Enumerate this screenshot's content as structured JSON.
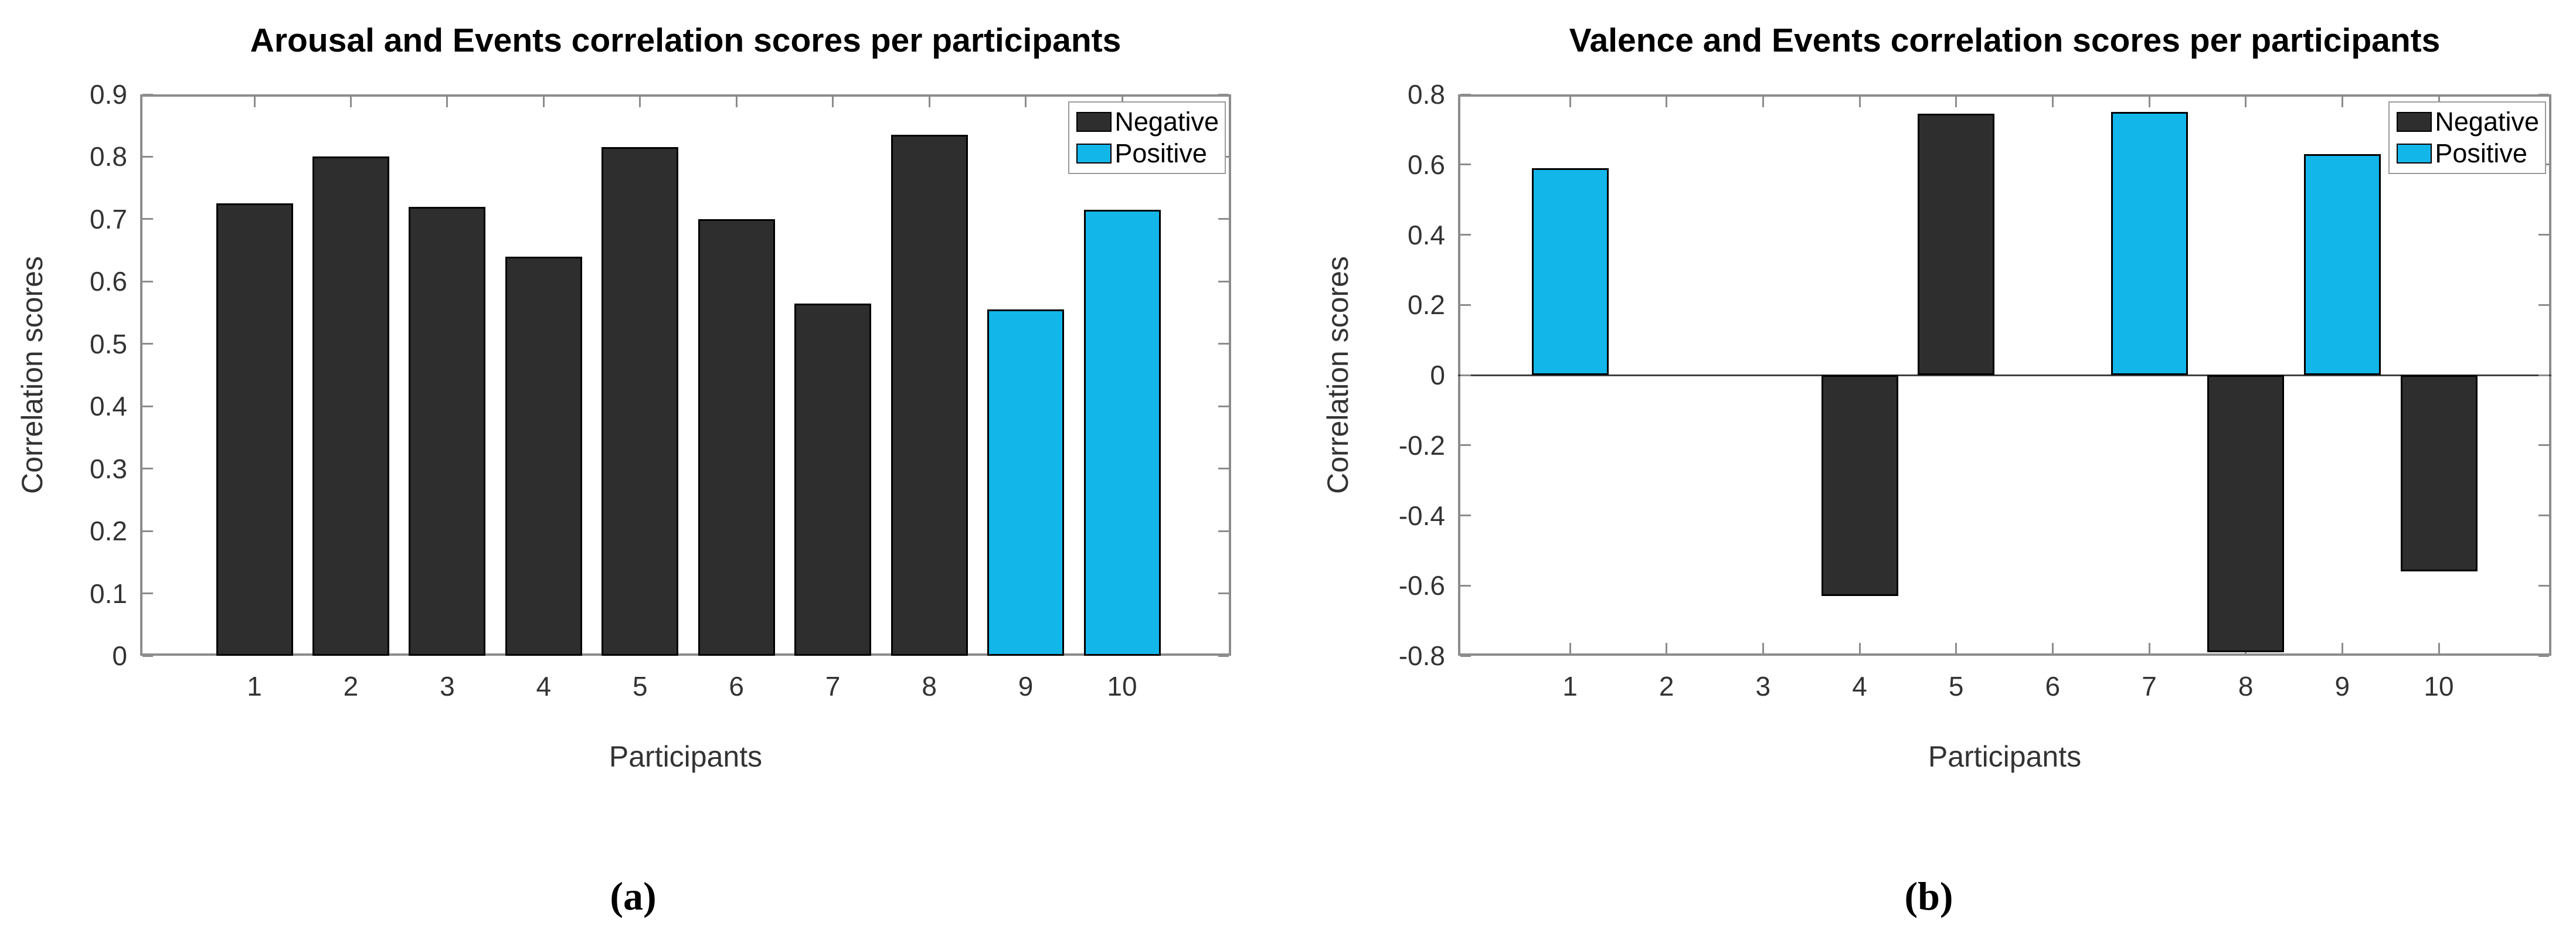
{
  "colors": {
    "negative": "#2e2e2e",
    "positive": "#12b6e9",
    "bar_edge": "#000000",
    "spine": "#8c8c8c",
    "tick_label": "#333333"
  },
  "panels": [
    {
      "panel_label": "(a)",
      "title": "Arousal and Events correlation scores per participants",
      "xlabel": "Participants",
      "ylabel": "Correlation scores",
      "ylim": [
        0,
        0.9
      ],
      "yticks": [
        {
          "v": 0,
          "label": "0"
        },
        {
          "v": 0.1,
          "label": "0.1"
        },
        {
          "v": 0.2,
          "label": "0.2"
        },
        {
          "v": 0.3,
          "label": "0.3"
        },
        {
          "v": 0.4,
          "label": "0.4"
        },
        {
          "v": 0.5,
          "label": "0.5"
        },
        {
          "v": 0.6,
          "label": "0.6"
        },
        {
          "v": 0.7,
          "label": "0.7"
        },
        {
          "v": 0.8,
          "label": "0.8"
        },
        {
          "v": 0.9,
          "label": "0.9"
        }
      ],
      "categories": [
        "1",
        "2",
        "3",
        "4",
        "5",
        "6",
        "7",
        "8",
        "9",
        "10"
      ],
      "bars": [
        {
          "category": "1",
          "value": 0.725,
          "series": "Negative"
        },
        {
          "category": "2",
          "value": 0.8,
          "series": "Negative"
        },
        {
          "category": "3",
          "value": 0.72,
          "series": "Negative"
        },
        {
          "category": "4",
          "value": 0.64,
          "series": "Negative"
        },
        {
          "category": "5",
          "value": 0.815,
          "series": "Negative"
        },
        {
          "category": "6",
          "value": 0.7,
          "series": "Negative"
        },
        {
          "category": "7",
          "value": 0.565,
          "series": "Negative"
        },
        {
          "category": "8",
          "value": 0.835,
          "series": "Negative"
        },
        {
          "category": "9",
          "value": 0.555,
          "series": "Positive"
        },
        {
          "category": "10",
          "value": 0.715,
          "series": "Positive"
        }
      ],
      "legend": [
        {
          "label": "Negative",
          "color": "#2e2e2e"
        },
        {
          "label": "Positive",
          "color": "#12b6e9"
        }
      ]
    },
    {
      "panel_label": "(b)",
      "title": "Valence and Events correlation scores per participants",
      "xlabel": "Participants",
      "ylabel": "Correlation scores",
      "ylim": [
        -0.8,
        0.8
      ],
      "yticks": [
        {
          "v": -0.8,
          "label": "-0.8"
        },
        {
          "v": -0.6,
          "label": "-0.6"
        },
        {
          "v": -0.4,
          "label": "-0.4"
        },
        {
          "v": -0.2,
          "label": "-0.2"
        },
        {
          "v": 0,
          "label": "0"
        },
        {
          "v": 0.2,
          "label": "0.2"
        },
        {
          "v": 0.4,
          "label": "0.4"
        },
        {
          "v": 0.6,
          "label": "0.6"
        },
        {
          "v": 0.8,
          "label": "0.8"
        }
      ],
      "categories": [
        "1",
        "2",
        "3",
        "4",
        "5",
        "6",
        "7",
        "8",
        "9",
        "10"
      ],
      "bars": [
        {
          "category": "1",
          "value": 0.59,
          "series": "Positive"
        },
        {
          "category": "2",
          "value": 0,
          "series": null
        },
        {
          "category": "3",
          "value": 0,
          "series": null
        },
        {
          "category": "4",
          "value": -0.63,
          "series": "Negative"
        },
        {
          "category": "5",
          "value": 0.745,
          "series": "Negative"
        },
        {
          "category": "6",
          "value": 0,
          "series": null
        },
        {
          "category": "7",
          "value": 0.75,
          "series": "Positive"
        },
        {
          "category": "8",
          "value": -0.79,
          "series": "Negative"
        },
        {
          "category": "9",
          "value": 0.63,
          "series": "Positive"
        },
        {
          "category": "10",
          "value": -0.56,
          "series": "Negative"
        }
      ],
      "legend": [
        {
          "label": "Negative",
          "color": "#2e2e2e"
        },
        {
          "label": "Positive",
          "color": "#12b6e9"
        }
      ]
    }
  ],
  "chart_data": [
    {
      "type": "bar",
      "title": "Arousal and Events correlation scores per participants",
      "xlabel": "Participants",
      "ylabel": "Correlation scores",
      "categories": [
        1,
        2,
        3,
        4,
        5,
        6,
        7,
        8,
        9,
        10
      ],
      "series": [
        {
          "name": "Negative",
          "color": "#2e2e2e",
          "values": [
            0.725,
            0.8,
            0.72,
            0.64,
            0.815,
            0.7,
            0.565,
            0.835,
            null,
            null
          ]
        },
        {
          "name": "Positive",
          "color": "#12b6e9",
          "values": [
            null,
            null,
            null,
            null,
            null,
            null,
            null,
            null,
            0.555,
            0.715
          ]
        }
      ],
      "ylim": [
        0,
        0.9
      ],
      "ytick_step": 0.1,
      "grid": false,
      "legend_position": "top-right inside",
      "subplot_label": "(a)"
    },
    {
      "type": "bar",
      "title": "Valence and Events correlation scores per participants",
      "xlabel": "Participants",
      "ylabel": "Correlation scores",
      "categories": [
        1,
        2,
        3,
        4,
        5,
        6,
        7,
        8,
        9,
        10
      ],
      "series": [
        {
          "name": "Negative",
          "color": "#2e2e2e",
          "values": [
            null,
            null,
            null,
            -0.63,
            0.745,
            null,
            null,
            -0.79,
            null,
            -0.56
          ]
        },
        {
          "name": "Positive",
          "color": "#12b6e9",
          "values": [
            0.59,
            null,
            null,
            null,
            null,
            null,
            0.75,
            null,
            0.63,
            null
          ]
        }
      ],
      "ylim": [
        -0.8,
        0.8
      ],
      "ytick_step": 0.2,
      "grid": false,
      "legend_position": "top-right inside",
      "subplot_label": "(b)"
    }
  ]
}
